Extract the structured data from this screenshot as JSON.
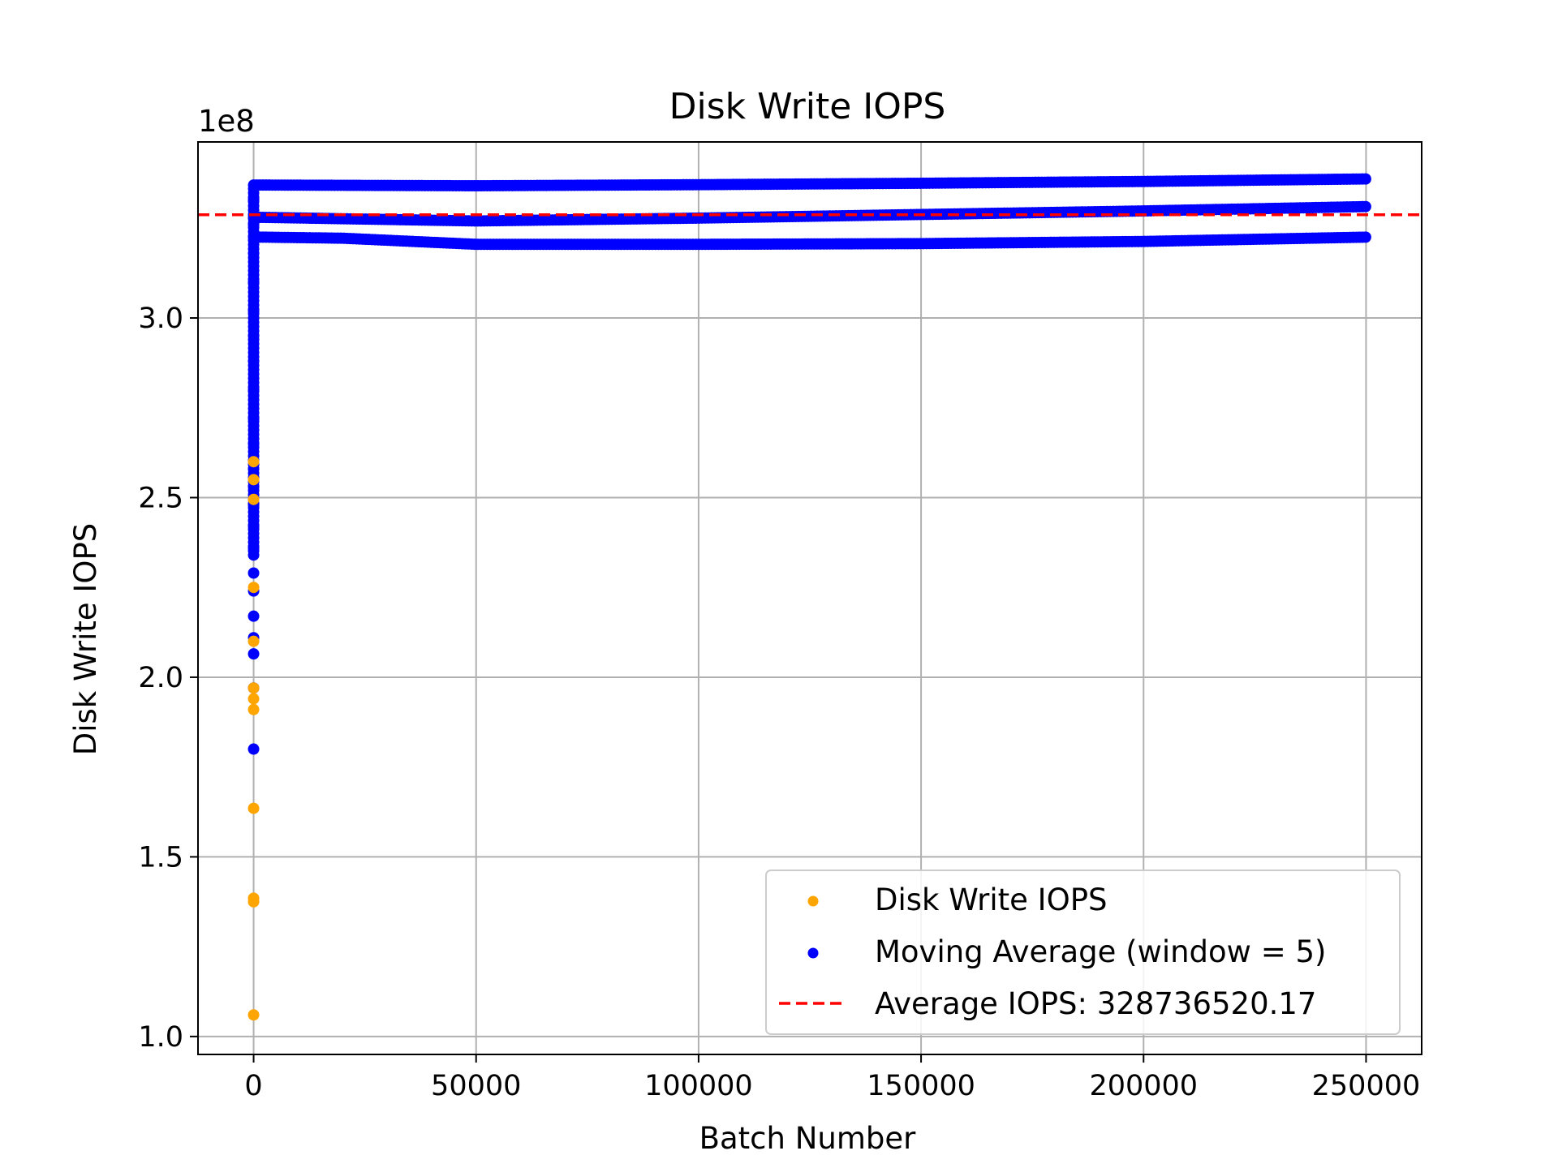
{
  "chart_data": {
    "type": "scatter",
    "title": "Disk Write IOPS",
    "xlabel": "Batch Number",
    "ylabel": "Disk Write IOPS",
    "y_offset_label": "1e8",
    "xlim": [
      -12500,
      262500
    ],
    "ylim": [
      0.95,
      3.49
    ],
    "y_scale_factor": 100000000,
    "xticks": [
      0,
      50000,
      100000,
      150000,
      200000,
      250000
    ],
    "xtick_labels": [
      "0",
      "50000",
      "100000",
      "150000",
      "200000",
      "250000"
    ],
    "yticks": [
      1.0,
      1.5,
      2.0,
      2.5,
      3.0
    ],
    "ytick_labels": [
      "1.0",
      "1.5",
      "2.0",
      "2.5",
      "3.0"
    ],
    "grid": true,
    "legend_position": "lower right",
    "series": [
      {
        "name": "Disk Write IOPS",
        "kind": "scatter",
        "color": "#ffa500",
        "points": [
          [
            0,
            1.06
          ],
          [
            0,
            1.375
          ],
          [
            0,
            1.385
          ],
          [
            0,
            1.635
          ],
          [
            0,
            1.91
          ],
          [
            0,
            1.94
          ],
          [
            0,
            1.97
          ],
          [
            0,
            2.1
          ],
          [
            0,
            2.25
          ],
          [
            0,
            2.495
          ],
          [
            0,
            2.55
          ],
          [
            0,
            2.6
          ]
        ]
      },
      {
        "name": "Moving Average (window = 5)",
        "kind": "scatter",
        "color": "#0000ff",
        "points_note_free": true,
        "bands": [
          {
            "x": [
              0,
              2000,
              50000,
              100000,
              150000,
              200000,
              250000
            ],
            "y": [
              3.37,
              3.37,
              3.368,
              3.371,
              3.375,
              3.38,
              3.387
            ]
          },
          {
            "x": [
              0,
              2000,
              50000,
              100000,
              150000,
              200000,
              250000
            ],
            "y": [
              3.28,
              3.28,
              3.27,
              3.278,
              3.288,
              3.298,
              3.31
            ]
          },
          {
            "x": [
              0,
              2000,
              20000,
              50000,
              100000,
              150000,
              200000,
              250000
            ],
            "y": [
              3.225,
              3.225,
              3.222,
              3.205,
              3.205,
              3.207,
              3.213,
              3.225
            ]
          }
        ],
        "start_column": [
          [
            0,
            1.8
          ],
          [
            0,
            1.97
          ],
          [
            0,
            2.065
          ],
          [
            0,
            2.11
          ],
          [
            0,
            2.17
          ],
          [
            0,
            2.24
          ],
          [
            0,
            2.29
          ],
          [
            0,
            2.36
          ],
          [
            0,
            2.42
          ],
          [
            0,
            2.48
          ],
          [
            0,
            2.53
          ],
          [
            0,
            2.58
          ],
          [
            0,
            2.65
          ],
          [
            0,
            2.72
          ],
          [
            0,
            2.8
          ],
          [
            0,
            2.88
          ],
          [
            0,
            2.95
          ],
          [
            0,
            3.02
          ],
          [
            0,
            3.1
          ],
          [
            0,
            3.18
          ],
          [
            0,
            3.26
          ],
          [
            0,
            3.33
          ]
        ]
      },
      {
        "name": "Average IOPS: 328736520.17",
        "kind": "hline",
        "color": "#ff0000",
        "y": 3.2873652017
      }
    ]
  }
}
